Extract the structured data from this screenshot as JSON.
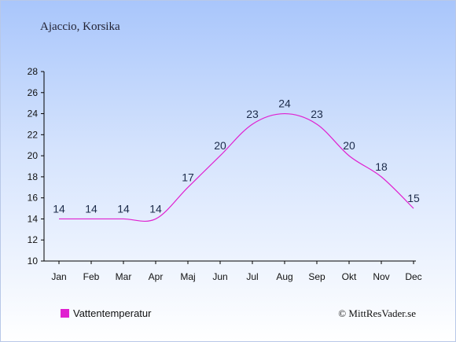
{
  "chart_data": {
    "type": "line",
    "title": "Ajaccio, Korsika",
    "categories": [
      "Jan",
      "Feb",
      "Mar",
      "Apr",
      "Maj",
      "Jun",
      "Jul",
      "Aug",
      "Sep",
      "Okt",
      "Nov",
      "Dec"
    ],
    "series": [
      {
        "name": "Vattentemperatur",
        "values": [
          14,
          14,
          14,
          14,
          17,
          20,
          23,
          24,
          23,
          20,
          18,
          15
        ],
        "color": "#e020d0"
      }
    ],
    "ylim": [
      10,
      28
    ],
    "yticks": [
      10,
      12,
      14,
      16,
      18,
      20,
      22,
      24,
      26,
      28
    ],
    "grid": false,
    "legend_position": "bottom-left"
  },
  "credit": "© MittResVader.se"
}
